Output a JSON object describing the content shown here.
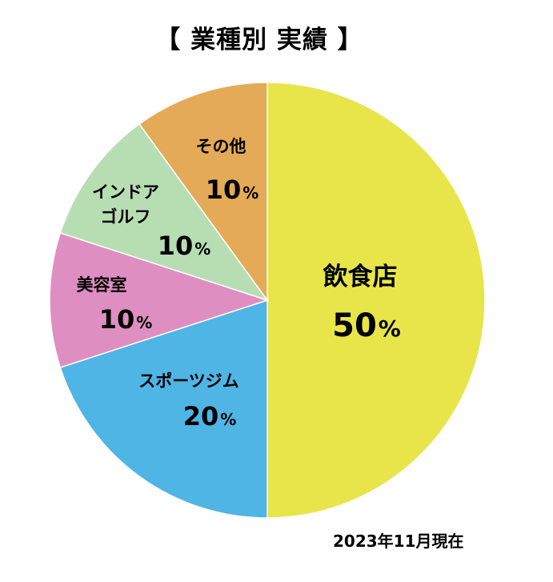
{
  "chart_data": {
    "type": "pie",
    "title": "【 業種別 実績 】",
    "start_angle_deg": 0,
    "direction": "clockwise",
    "slices": [
      {
        "name": "飲食店",
        "value": 50,
        "label_value": "50",
        "unit": "%",
        "color": "#E7E549"
      },
      {
        "name": "スポーツジム",
        "value": 20,
        "label_value": "20",
        "unit": "%",
        "color": "#4FB5E5"
      },
      {
        "name": "美容室",
        "value": 10,
        "label_value": "10",
        "unit": "%",
        "color": "#DF8EC2"
      },
      {
        "name": "インドア\nゴルフ",
        "value": 10,
        "label_value": "10",
        "unit": "%",
        "color": "#B7DEB3"
      },
      {
        "name": "その他",
        "value": 10,
        "label_value": "10",
        "unit": "%",
        "color": "#E4AA57"
      }
    ]
  },
  "footnote": "2023年11月現在",
  "colors": {
    "slice_border": "#FFFFFF",
    "text": "#000000"
  }
}
